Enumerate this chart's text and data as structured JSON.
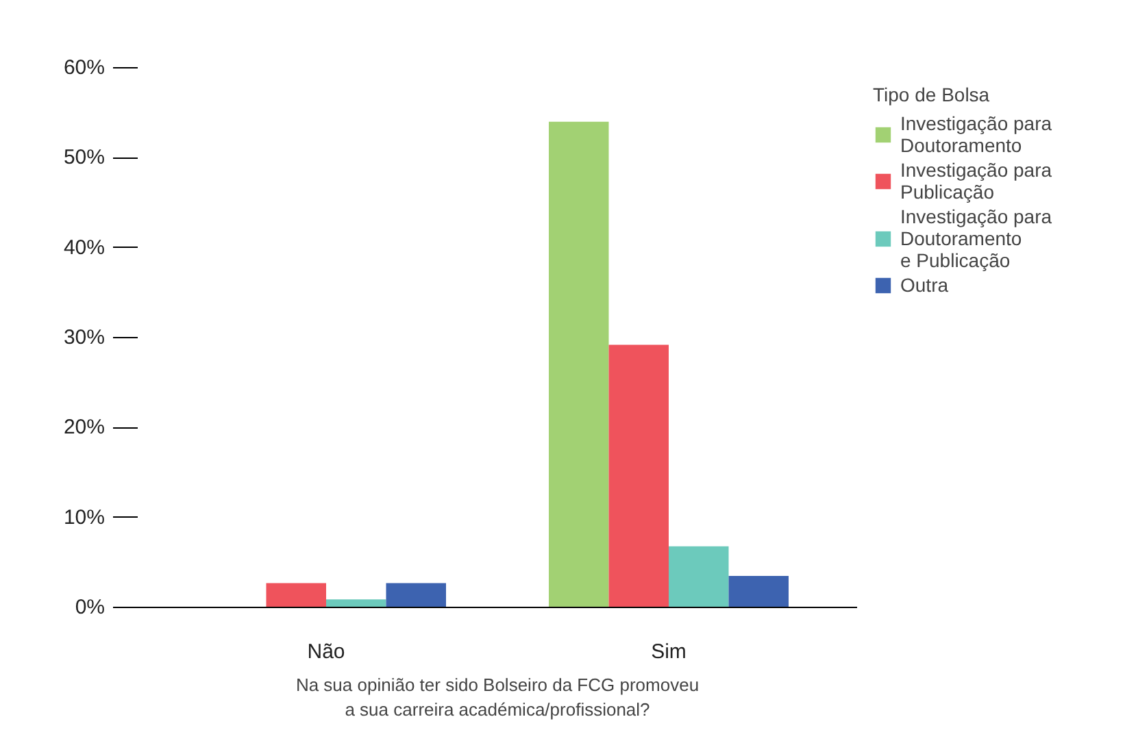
{
  "chart_data": {
    "type": "bar",
    "xlabel": "Na sua opinião ter sido Bolseiro da FCG promoveu\na sua carreira académica/profissional?",
    "legend_title": "Tipo de Bolsa",
    "categories": [
      "Não",
      "Sim"
    ],
    "series": [
      {
        "name": "Investigação para\nDoutoramento",
        "color": "#a2d173",
        "values": [
          0,
          54.0
        ]
      },
      {
        "name": "Investigação para\nPublicação",
        "color": "#ef535c",
        "values": [
          2.7,
          29.2
        ]
      },
      {
        "name": "Investigação para\nDoutoramento\ne Publicação",
        "color": "#6ccabc",
        "values": [
          0.9,
          6.8
        ]
      },
      {
        "name": "Outra",
        "color": "#3d63b0",
        "values": [
          2.7,
          3.5
        ]
      }
    ],
    "ylim": [
      0,
      60
    ],
    "yticks": [
      {
        "value": 0,
        "label": "0%"
      },
      {
        "value": 10,
        "label": "10%"
      },
      {
        "value": 20,
        "label": "20%"
      },
      {
        "value": 30,
        "label": "30%"
      },
      {
        "value": 40,
        "label": "40%"
      },
      {
        "value": 50,
        "label": "50%"
      },
      {
        "value": 60,
        "label": "60%"
      }
    ],
    "grid": false,
    "legend": "top right"
  }
}
